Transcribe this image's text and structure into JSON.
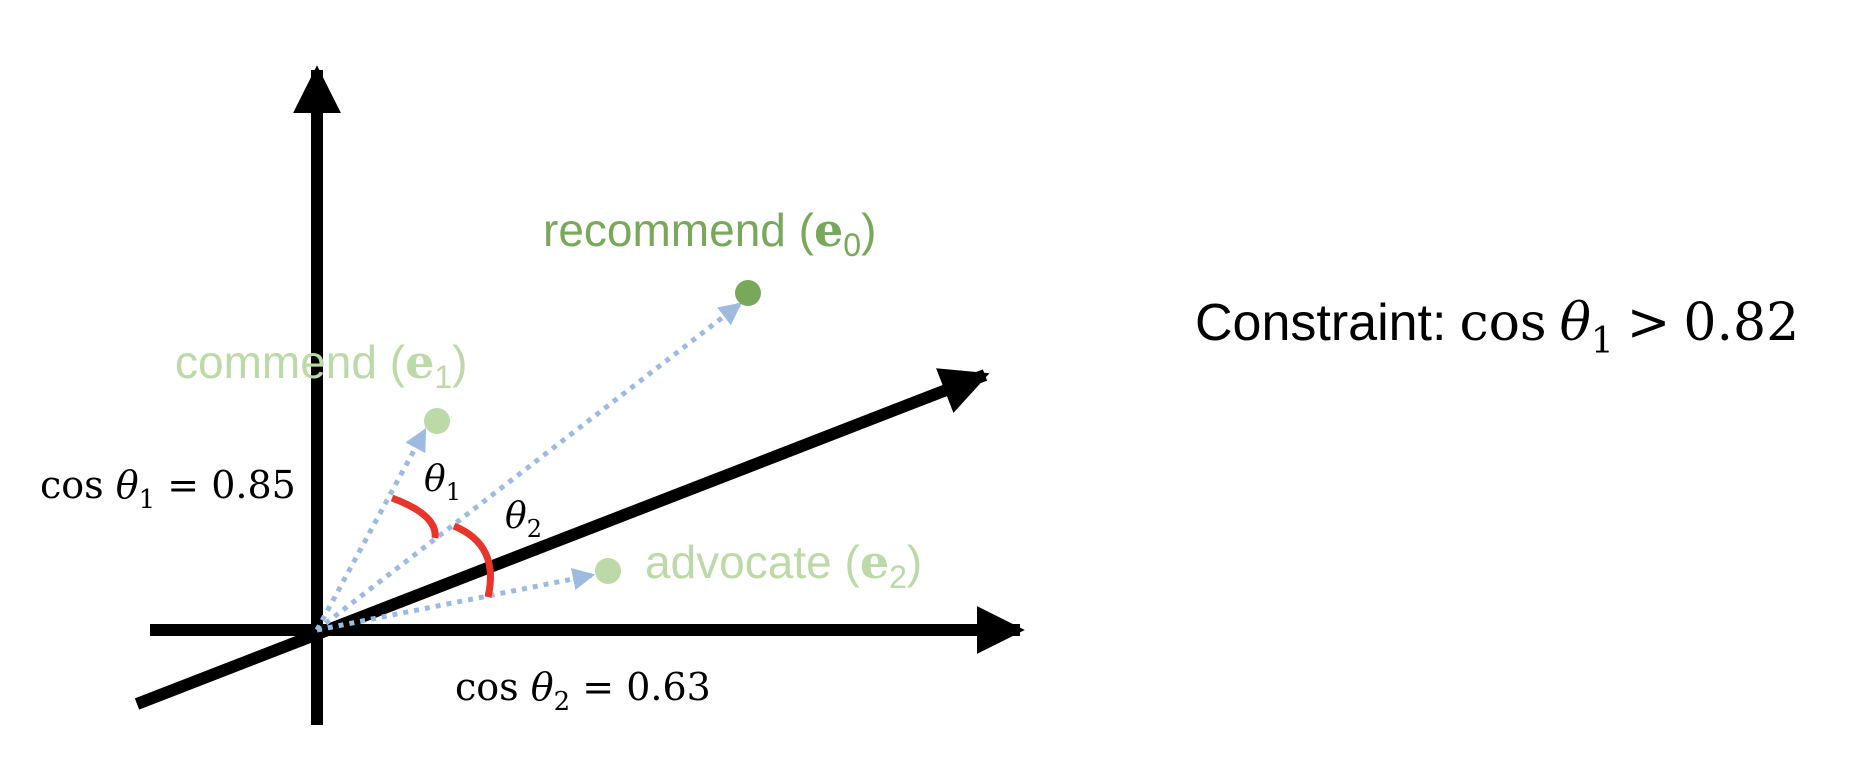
{
  "colors": {
    "axis": "#000000",
    "vector": "#9dbbe0",
    "anchor_word": "#78a85a",
    "candidate_word": "#bcd9a8",
    "angle_arc": "#e8342a",
    "text": "#000000"
  },
  "words": {
    "anchor": {
      "name": "recommend",
      "symbol": "e",
      "sub": "0"
    },
    "candidate1": {
      "name": "commend",
      "symbol": "e",
      "sub": "1"
    },
    "candidate2": {
      "name": "advocate",
      "symbol": "e",
      "sub": "2"
    }
  },
  "angles": {
    "theta1": {
      "symbol": "θ",
      "sub": "1"
    },
    "theta2": {
      "symbol": "θ",
      "sub": "2"
    }
  },
  "cosines": {
    "c1": {
      "func": "cos",
      "symbol": "θ",
      "sub": "1",
      "rel": "=",
      "value": "0.85"
    },
    "c2": {
      "func": "cos",
      "symbol": "θ",
      "sub": "2",
      "rel": "=",
      "value": "0.63"
    }
  },
  "constraint": {
    "label": "Constraint:",
    "func": "cos",
    "symbol": "θ",
    "sub": "1",
    "rel": ">",
    "value": "0.82"
  }
}
